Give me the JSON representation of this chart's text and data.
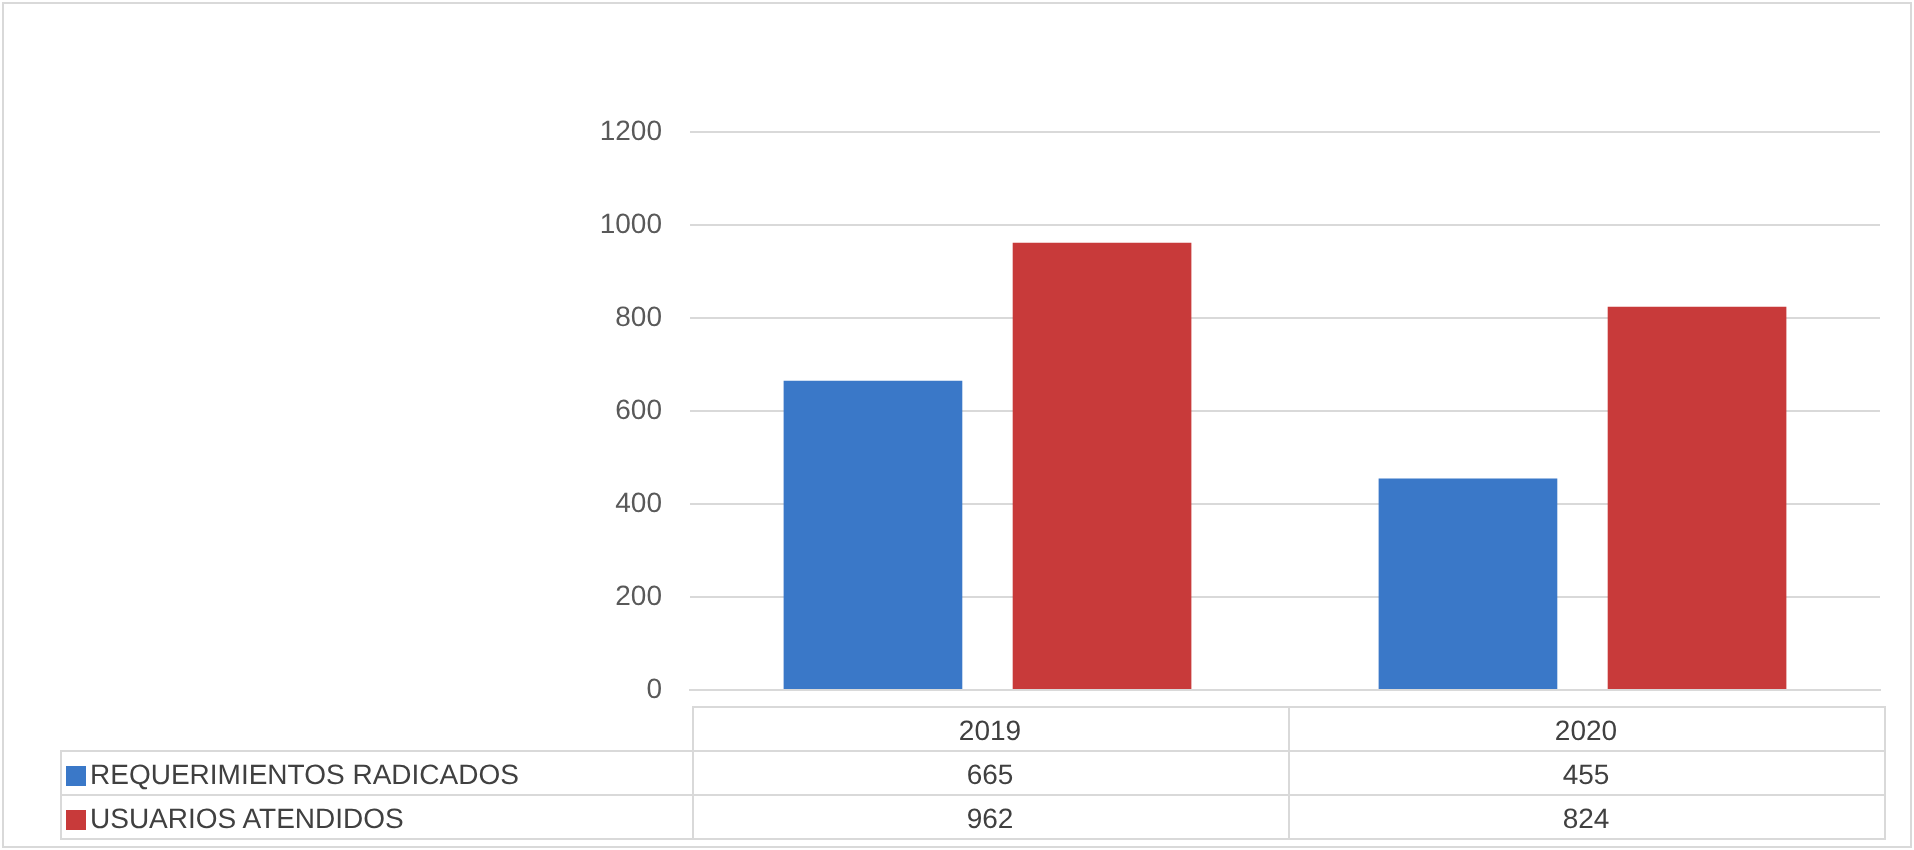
{
  "chart_data": {
    "type": "bar",
    "categories": [
      "2019",
      "2020"
    ],
    "series": [
      {
        "name": "REQUERIMIENTOS RADICADOS",
        "color": "#3a78c8",
        "values": [
          665,
          455
        ]
      },
      {
        "name": "USUARIOS ATENDIDOS",
        "color": "#c83a3a",
        "values": [
          962,
          824
        ]
      }
    ],
    "ylim": [
      0,
      1200
    ],
    "yticks": [
      0,
      200,
      400,
      600,
      800,
      1000,
      1200
    ],
    "grid": "y",
    "legend": "bottom",
    "data_labels": true
  }
}
